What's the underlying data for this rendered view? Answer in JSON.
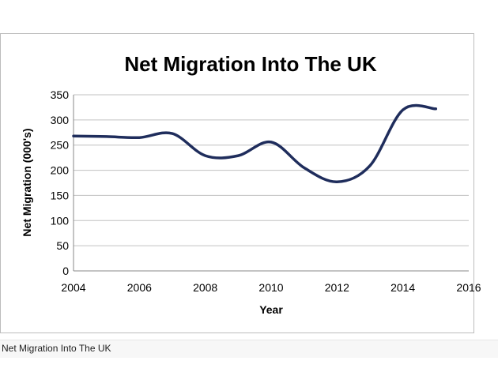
{
  "caption": "Net Migration Into The UK",
  "colors": {
    "line": "#1f2d5c",
    "grid": "#c0c0c0",
    "axis": "#888888"
  },
  "chart_data": {
    "type": "line",
    "title": "Net Migration Into The UK",
    "xlabel": "Year",
    "ylabel": "Net Migration (000's)",
    "xlim": [
      2004,
      2016
    ],
    "ylim": [
      0,
      350
    ],
    "xticks": [
      2004,
      2006,
      2008,
      2010,
      2012,
      2014,
      2016
    ],
    "yticks": [
      0,
      50,
      100,
      150,
      200,
      250,
      300,
      350
    ],
    "grid": true,
    "series": [
      {
        "x": [
          2004,
          2005,
          2006,
          2007,
          2008,
          2009,
          2010,
          2011,
          2012,
          2013,
          2014,
          2015
        ],
        "values": [
          268,
          267,
          265,
          273,
          229,
          229,
          256,
          205,
          177,
          209,
          320,
          322
        ]
      }
    ]
  }
}
